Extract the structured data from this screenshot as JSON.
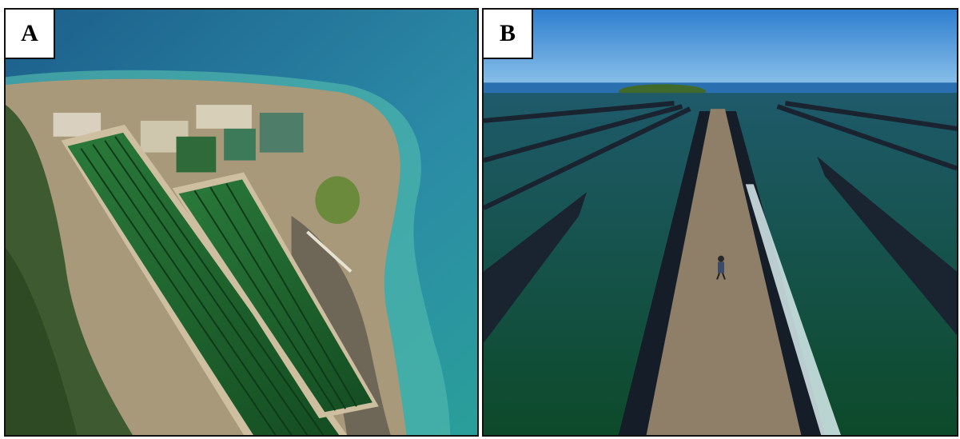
{
  "figure": {
    "panels": [
      {
        "label": "A"
      },
      {
        "label": "B"
      }
    ]
  },
  "colors": {
    "sea_deep": "#1f6f9a",
    "sea_shallow": "#3ea7a6",
    "pond_green": "#1f6a2a",
    "land": "#a89c7a",
    "vegetation": "#3b5a2e",
    "sky": "#3a8fd6",
    "pond_water": "#0e3f3a",
    "liner": "#1a2330",
    "berm": "#8a7a66"
  }
}
